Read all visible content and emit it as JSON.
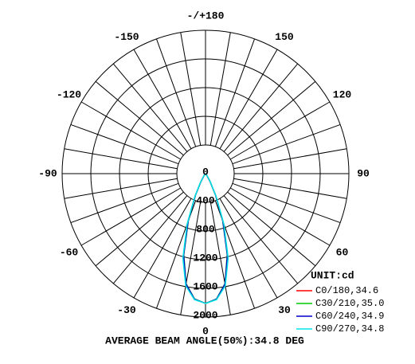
{
  "chart_data": {
    "type": "polar",
    "title": "AVERAGE BEAM ANGLE(50%):34.8 DEG",
    "unit_label": "UNIT:cd",
    "angle_zero": "bottom",
    "rlim": [
      0,
      2000
    ],
    "rticks": [
      0,
      400,
      800,
      1200,
      1600,
      2000
    ],
    "angle_ticks": [
      {
        "value": 180,
        "label": "-/+180"
      },
      150,
      120,
      90,
      60,
      30,
      0,
      -30,
      -60,
      -90,
      -120,
      -150
    ],
    "angle_grid": [
      -170,
      -160,
      -150,
      -140,
      -130,
      -120,
      -110,
      -100,
      -90,
      -80,
      -70,
      -60,
      -50,
      -40,
      -30,
      -20,
      -10,
      0,
      10,
      20,
      30,
      40,
      50,
      60,
      70,
      80,
      90,
      100,
      110,
      120,
      130,
      140,
      150,
      160,
      170,
      180
    ],
    "grid": true,
    "legend": "lower right",
    "x": [
      -60,
      -55,
      -50,
      -45,
      -40,
      -35,
      -30,
      -25,
      -20,
      -15,
      -10,
      -5,
      0,
      5,
      10,
      15,
      20,
      25,
      30,
      35,
      40,
      45,
      50,
      55,
      60
    ],
    "series": [
      {
        "name": "C0/180,34.6",
        "color": "#ff0000",
        "values": [
          0,
          0,
          0,
          3,
          12,
          45,
          130,
          340,
          720,
          1190,
          1570,
          1760,
          1810,
          1760,
          1570,
          1190,
          720,
          340,
          130,
          45,
          12,
          3,
          0,
          0,
          0
        ]
      },
      {
        "name": "C30/210,35.0",
        "color": "#00cc00",
        "values": [
          0,
          0,
          0,
          2,
          10,
          42,
          125,
          330,
          700,
          1170,
          1560,
          1755,
          1810,
          1755,
          1560,
          1170,
          700,
          330,
          125,
          42,
          10,
          2,
          0,
          0,
          0
        ]
      },
      {
        "name": "C60/240,34.9",
        "color": "#0000cc",
        "values": [
          0,
          0,
          0,
          3,
          11,
          44,
          128,
          335,
          710,
          1180,
          1565,
          1758,
          1810,
          1758,
          1565,
          1180,
          710,
          335,
          128,
          44,
          11,
          3,
          0,
          0,
          0
        ]
      },
      {
        "name": "C90/270,34.8",
        "color": "#00e5e5",
        "values": [
          0,
          0,
          0,
          4,
          14,
          50,
          140,
          355,
          750,
          1220,
          1590,
          1765,
          1810,
          1765,
          1590,
          1220,
          750,
          355,
          140,
          50,
          14,
          4,
          0,
          0,
          0
        ]
      }
    ]
  }
}
